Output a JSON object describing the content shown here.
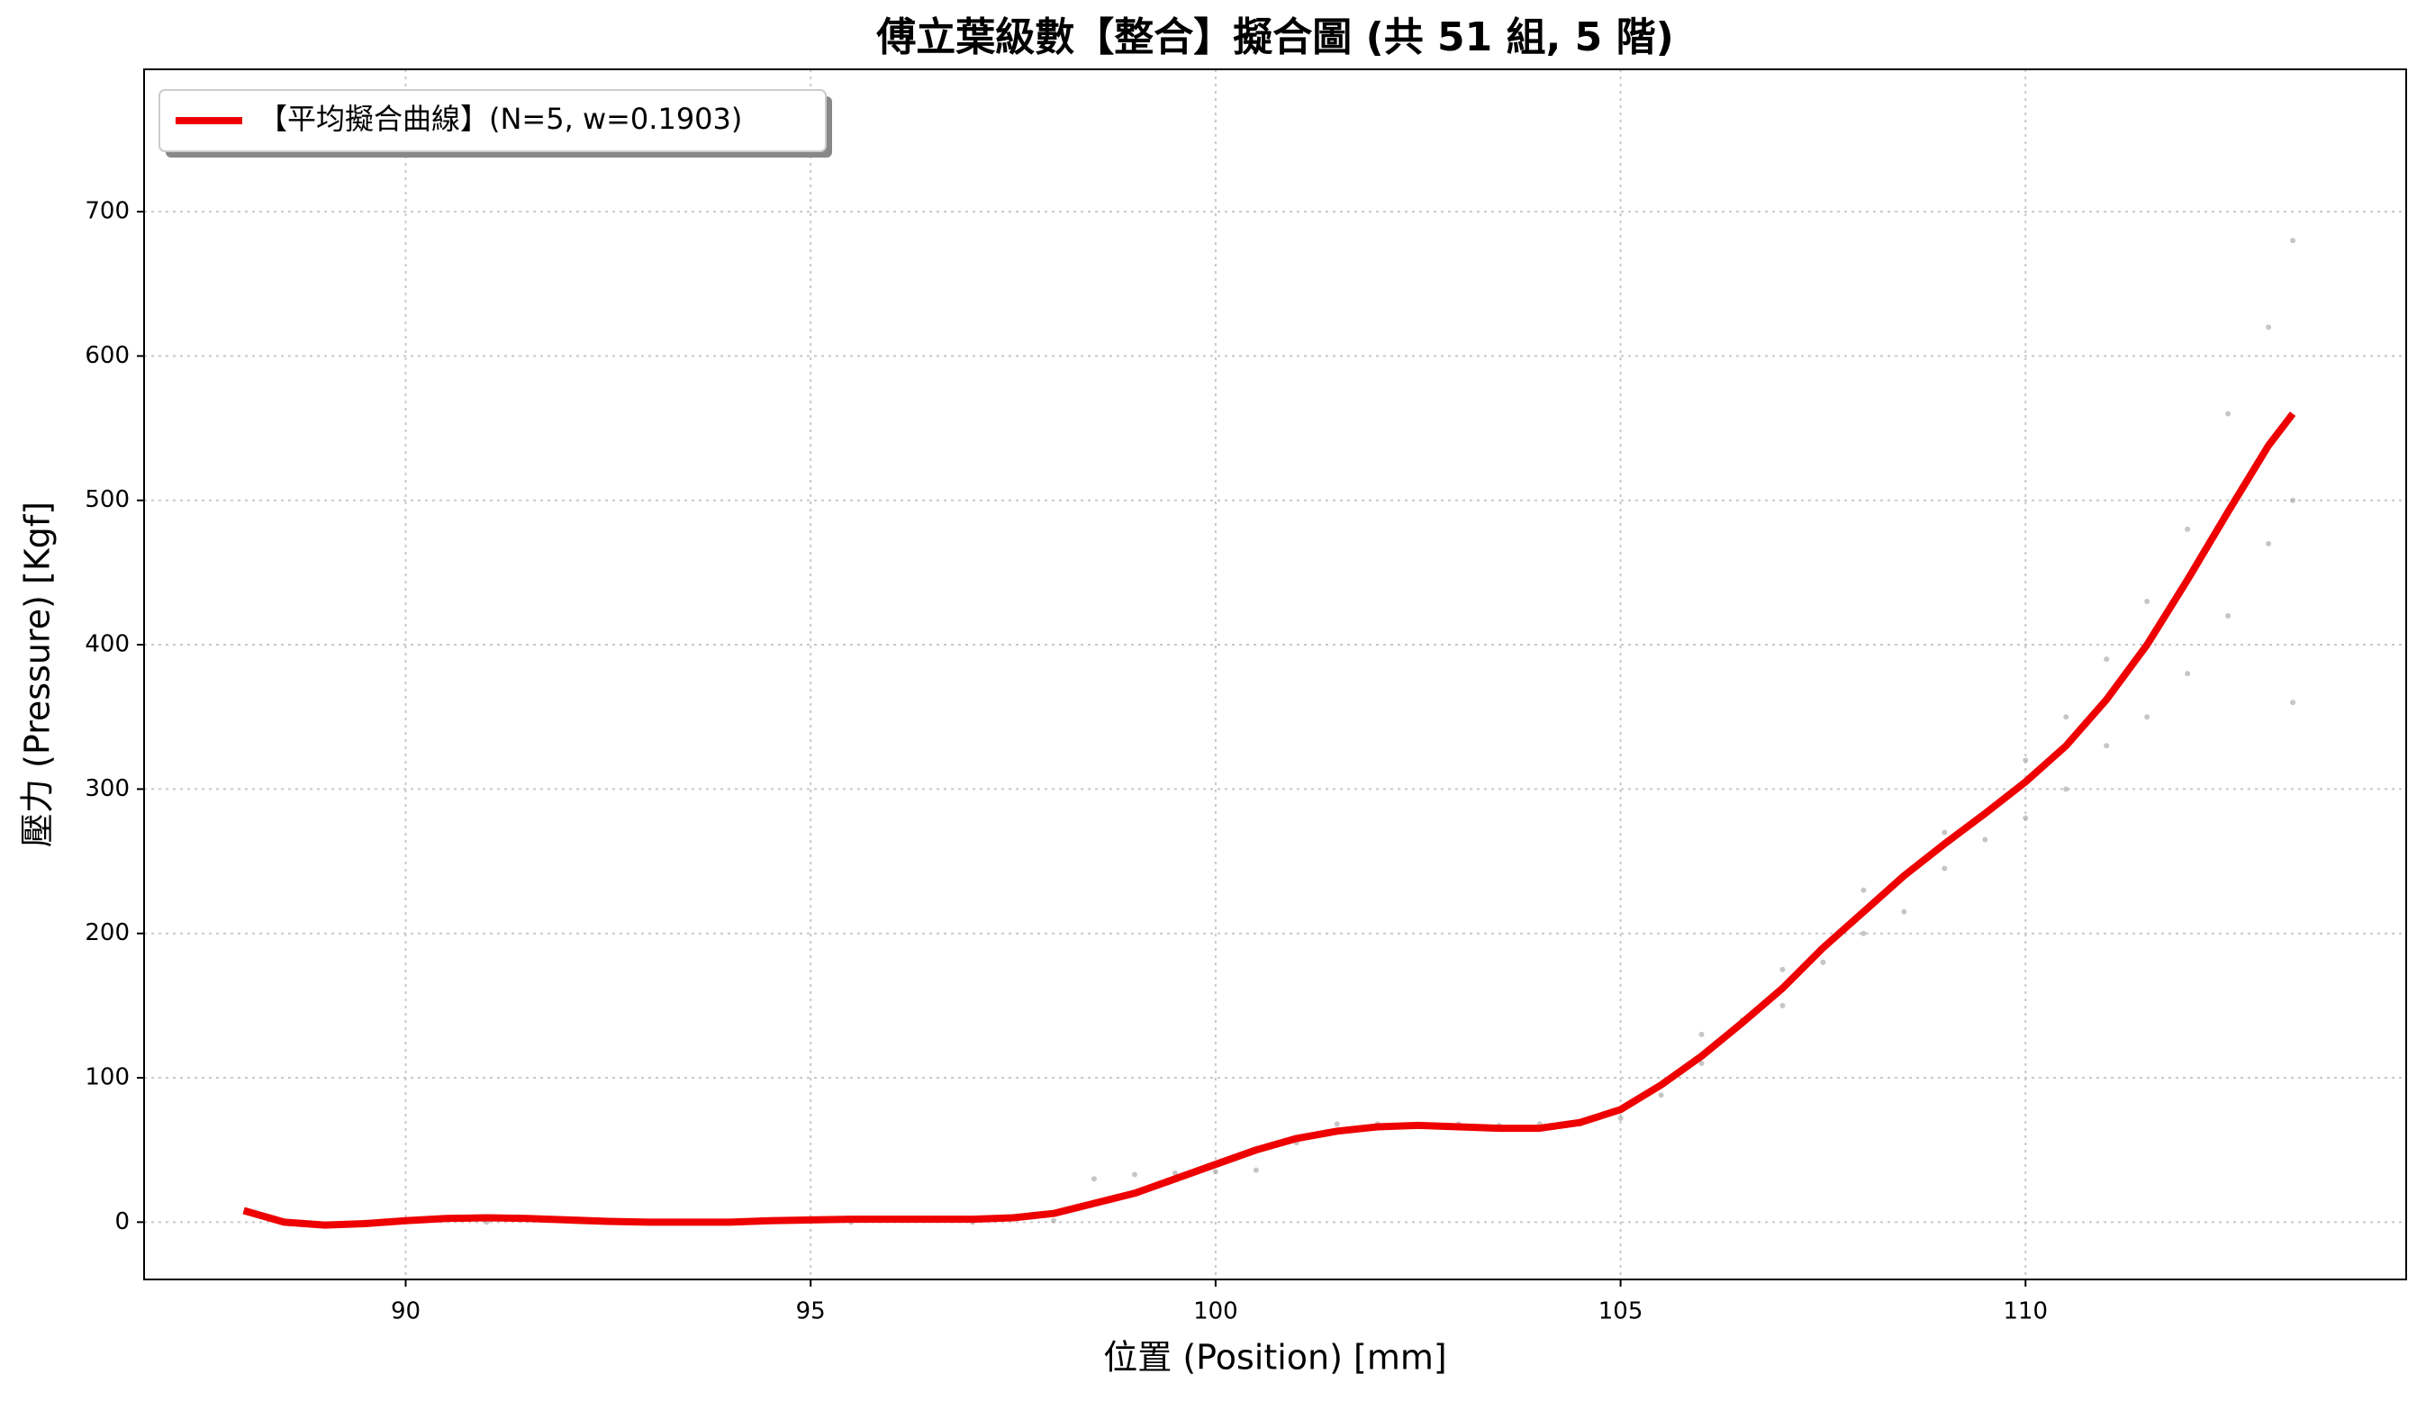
{
  "chart_data": {
    "type": "line",
    "title": "傅立葉級數【整合】擬合圖 (共 51 組, 5 階)",
    "x_label": "位置 (Position) [mm]",
    "y_label": "壓力 (Pressure) [Kgf]",
    "x": [
      88.0,
      88.5,
      89.0,
      89.5,
      90.0,
      90.5,
      91.0,
      91.5,
      92.0,
      92.5,
      93.0,
      93.5,
      94.0,
      94.5,
      95.0,
      95.5,
      96.0,
      96.5,
      97.0,
      97.5,
      98.0,
      98.5,
      99.0,
      99.5,
      100.0,
      100.5,
      101.0,
      101.5,
      102.0,
      102.5,
      103.0,
      103.5,
      104.0,
      104.5,
      105.0,
      105.5,
      106.0,
      106.5,
      107.0,
      107.5,
      108.0,
      108.5,
      109.0,
      109.5,
      110.0,
      110.5,
      111.0,
      111.5,
      112.0,
      112.5,
      113.0,
      113.3
    ],
    "series": [
      {
        "name": "【平均擬合曲線】(N=5, w=0.1903)",
        "color": "#ee0000",
        "values": [
          8,
          0,
          -2,
          -1,
          1,
          2.5,
          3,
          2.5,
          1.5,
          0.5,
          0,
          0,
          0,
          1,
          1.5,
          2,
          2,
          2,
          2,
          3,
          6,
          13,
          20,
          30,
          40,
          50,
          58,
          63,
          66,
          67,
          66,
          65,
          65,
          69,
          78,
          95,
          115,
          138,
          162,
          190,
          215,
          240,
          262,
          283,
          305,
          330,
          362,
          400,
          445,
          492,
          538,
          560
        ]
      }
    ],
    "scatter": {
      "color": "#a0a0a0",
      "x": [
        88.5,
        89.5,
        91,
        92.5,
        94,
        95.5,
        97,
        98,
        98.5,
        99,
        99.5,
        100,
        100.5,
        101,
        101.5,
        102,
        102.5,
        103,
        103.5,
        104,
        104.5,
        105,
        105.5,
        106,
        106,
        106.5,
        107,
        107,
        107.5,
        108,
        108,
        108.5,
        109,
        109,
        109.5,
        110,
        110,
        110.5,
        110.5,
        111,
        111,
        111.5,
        111.5,
        112,
        112,
        112.5,
        112.5,
        113,
        113,
        113.3,
        113.3,
        113.3
      ],
      "values": [
        0,
        0,
        0,
        0,
        0,
        0,
        0,
        1,
        30,
        33,
        34,
        35,
        36,
        55,
        68,
        68,
        67,
        68,
        67,
        68,
        68,
        72,
        88,
        110,
        130,
        140,
        150,
        175,
        180,
        200,
        230,
        215,
        245,
        270,
        265,
        280,
        320,
        300,
        350,
        330,
        390,
        350,
        430,
        380,
        480,
        420,
        560,
        470,
        620,
        500,
        680,
        360
      ]
    },
    "xlim": [
      86.77,
      114.7
    ],
    "ylim": [
      -39.7,
      798.6
    ],
    "xticks": [
      90,
      95,
      100,
      105,
      110
    ],
    "yticks": [
      0,
      100,
      200,
      300,
      400,
      500,
      600,
      700
    ],
    "grid": true,
    "legend": "upper left"
  }
}
